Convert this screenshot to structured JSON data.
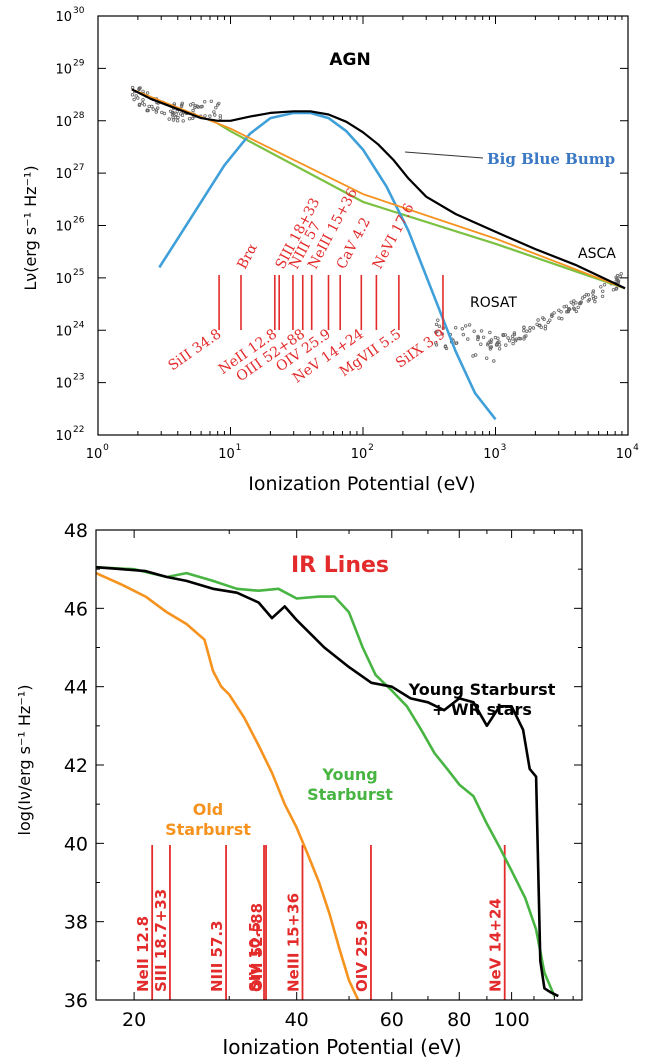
{
  "colors": {
    "black": "#000000",
    "red": "#e32b2b",
    "green": "#7dc142",
    "blue": "#3fa0d9",
    "orange": "#f6921e",
    "green_bottom": "#48b543",
    "bump_label": "#3a78c3",
    "scatter": "#666666"
  },
  "chart_data": [
    {
      "type": "line",
      "title": "AGN",
      "xlabel": "Ionization Potential (eV)",
      "ylabel": "Lν(erg s⁻¹ Hz⁻¹)",
      "xscale": "log",
      "yscale": "log",
      "xlim": [
        1,
        10000
      ],
      "ylim": [
        1e+22,
        1e+30
      ],
      "xticks": [
        {
          "base": "10",
          "exp": "0",
          "value": 1
        },
        {
          "base": "10",
          "exp": "1",
          "value": 10
        },
        {
          "base": "10",
          "exp": "2",
          "value": 100
        },
        {
          "base": "10",
          "exp": "3",
          "value": 1000
        },
        {
          "base": "10",
          "exp": "4",
          "value": 10000
        }
      ],
      "yticks": [
        {
          "base": "10",
          "exp": "22",
          "value": 22
        },
        {
          "base": "10",
          "exp": "23",
          "value": 23
        },
        {
          "base": "10",
          "exp": "24",
          "value": 24
        },
        {
          "base": "10",
          "exp": "25",
          "value": 25
        },
        {
          "base": "10",
          "exp": "26",
          "value": 26
        },
        {
          "base": "10",
          "exp": "27",
          "value": 27
        },
        {
          "base": "10",
          "exp": "28",
          "value": 28
        },
        {
          "base": "10",
          "exp": "29",
          "value": 29
        },
        {
          "base": "10",
          "exp": "30",
          "value": 30
        }
      ],
      "series": [
        {
          "style": "black",
          "x": [
            1.8,
            2.5,
            4,
            6,
            8,
            10,
            14,
            20,
            30,
            40,
            55,
            75,
            100,
            130,
            170,
            220,
            300,
            500,
            1000,
            2000,
            4000,
            9500
          ],
          "logy": [
            28.6,
            28.42,
            28.22,
            28.05,
            28.0,
            28.0,
            28.08,
            28.15,
            28.18,
            28.18,
            28.12,
            27.98,
            27.78,
            27.55,
            27.25,
            26.9,
            26.55,
            26.22,
            25.88,
            25.55,
            25.25,
            24.8
          ]
        },
        {
          "style": "orange",
          "x": [
            1.8,
            10,
            100,
            1000,
            9500
          ],
          "logy": [
            28.6,
            27.85,
            26.6,
            25.75,
            24.8
          ]
        },
        {
          "style": "green",
          "x": [
            8,
            10,
            100,
            1000,
            9500
          ],
          "logy": [
            27.95,
            27.8,
            26.45,
            25.65,
            24.8
          ]
        },
        {
          "style": "blue",
          "x": [
            2.9,
            4,
            6,
            9,
            14,
            20,
            30,
            40,
            55,
            75,
            100,
            150,
            220,
            350,
            500,
            700,
            1000
          ],
          "logy": [
            25.2,
            25.75,
            26.45,
            27.15,
            27.75,
            28.05,
            28.15,
            28.15,
            28.05,
            27.8,
            27.45,
            26.75,
            25.9,
            24.6,
            23.6,
            22.8,
            22.3
          ]
        }
      ],
      "annotations": {
        "big_blue_bump": "Big Blue Bump",
        "asca": "ASCA",
        "rosat": "ROSAT"
      },
      "lines": [
        {
          "label": "SiII 34.8",
          "ev": 8.2,
          "side": "bottom"
        },
        {
          "label": "Brα",
          "ev": 12.0,
          "side": "top"
        },
        {
          "label": "NeII 12.8",
          "ev": 21.6,
          "side": "bottom"
        },
        {
          "label": "SIII 18+33",
          "ev": 23.3,
          "side": "top"
        },
        {
          "label": "OIII 52+88",
          "ev": 35.1,
          "side": "bottom"
        },
        {
          "label": "NIII 57",
          "ev": 29.6,
          "side": "top"
        },
        {
          "label": "OIV 25.9",
          "ev": 54.9,
          "side": "bottom"
        },
        {
          "label": "NeIII 15+36",
          "ev": 41.0,
          "side": "top"
        },
        {
          "label": "CaV 4.2",
          "ev": 67.3,
          "side": "top"
        },
        {
          "label": "NeV 14+24",
          "ev": 97.1,
          "side": "bottom"
        },
        {
          "label": "NeVI 17.6",
          "ev": 126.2,
          "side": "top"
        },
        {
          "label": "MgVII 5.5",
          "ev": 186.5,
          "side": "bottom"
        },
        {
          "label": "SiIX 3.9",
          "ev": 401.4,
          "side": "bottom"
        }
      ]
    },
    {
      "type": "line",
      "title": "IR Lines",
      "xlabel": "Ionization Potential (eV)",
      "ylabel": "log(Iν/erg s⁻¹ Hz⁻¹)",
      "xscale": "log",
      "xlim": [
        17,
        135
      ],
      "ylim": [
        36,
        48
      ],
      "xticks": [
        20,
        40,
        60,
        80,
        100
      ],
      "yticks": [
        36,
        38,
        40,
        42,
        44,
        46,
        48
      ],
      "series": [
        {
          "name": "Young Starburst + WR stars",
          "style": "black",
          "x": [
            17,
            19,
            21,
            23,
            25,
            28,
            31,
            34,
            36,
            38,
            40,
            45,
            50,
            55,
            60,
            65,
            70,
            75,
            80,
            85,
            90,
            95,
            100,
            105,
            108,
            111,
            113,
            115,
            118,
            122
          ],
          "y": [
            47.05,
            47.0,
            46.95,
            46.8,
            46.7,
            46.5,
            46.4,
            46.15,
            45.75,
            46.05,
            45.7,
            45.0,
            44.5,
            44.1,
            44.0,
            43.7,
            43.6,
            43.4,
            43.7,
            43.6,
            43.0,
            43.5,
            43.5,
            42.9,
            41.9,
            41.7,
            37.0,
            36.3,
            36.2,
            36.1
          ]
        },
        {
          "name": "Young Starburst",
          "style": "green",
          "x": [
            17,
            20,
            23,
            25,
            28,
            31,
            34,
            37,
            40,
            44,
            47,
            50,
            53,
            56,
            60,
            64,
            68,
            72,
            76,
            80,
            85,
            90,
            95,
            100,
            106,
            111,
            115,
            120
          ],
          "y": [
            47.05,
            47.0,
            46.8,
            46.9,
            46.7,
            46.5,
            46.45,
            46.5,
            46.25,
            46.3,
            46.3,
            45.9,
            45.0,
            44.3,
            43.9,
            43.5,
            42.9,
            42.3,
            41.9,
            41.5,
            41.2,
            40.5,
            39.9,
            39.3,
            38.6,
            37.8,
            36.7,
            36.1
          ]
        },
        {
          "name": "Old Starburst",
          "style": "orange",
          "x": [
            17,
            19,
            21,
            23,
            25,
            27,
            28,
            29,
            30,
            32,
            34,
            36,
            38,
            40,
            42,
            44,
            46,
            48,
            50,
            52
          ],
          "y": [
            46.9,
            46.6,
            46.3,
            45.9,
            45.6,
            45.2,
            44.4,
            44.0,
            43.8,
            43.2,
            42.5,
            41.8,
            41.0,
            40.4,
            39.7,
            39.0,
            38.2,
            37.3,
            36.5,
            36.0
          ]
        }
      ],
      "series_labels": [
        {
          "lines": [
            "Young Starburst",
            "+ WR stars"
          ],
          "color": "black"
        },
        {
          "lines": [
            "Young",
            "Starburst"
          ],
          "color": "green"
        },
        {
          "lines": [
            "Old",
            "Starburst"
          ],
          "color": "orange"
        }
      ],
      "lines": [
        {
          "label": "NeII 12.8",
          "ev": 21.6
        },
        {
          "label": "SIII 18.7+33",
          "ev": 23.3
        },
        {
          "label": "NIII 57.3",
          "ev": 29.6
        },
        {
          "label": "OIII 52+88",
          "ev": 35.1
        },
        {
          "label": "SIV 10.5",
          "ev": 34.8
        },
        {
          "label": "NeIII 15+36",
          "ev": 41.0
        },
        {
          "label": "OIV 25.9",
          "ev": 54.9
        },
        {
          "label": "NeV 14+24",
          "ev": 97.1
        }
      ]
    }
  ]
}
